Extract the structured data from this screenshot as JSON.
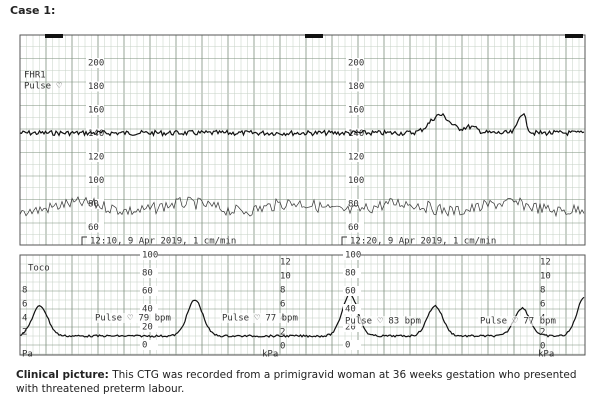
{
  "header": {
    "title": "Case 1:"
  },
  "strip": {
    "fhr_scale": [
      "200",
      "180",
      "160",
      "140",
      "120",
      "100",
      "80",
      "60"
    ],
    "fhr_legend": [
      "FHR1",
      "Pulse ♡"
    ],
    "timestamps": [
      "12:10, 9 Apr 2019, 1 cm/min",
      "12:20, 9 Apr 2019, 1 cm/min"
    ],
    "toco_label": "Toco",
    "toco_scale": [
      "100",
      "80",
      "60",
      "40",
      "20",
      "0"
    ],
    "kpa_scale": [
      "12",
      "10",
      "8",
      "6",
      "4",
      "2",
      "0"
    ],
    "left_scale": [
      "8",
      "6",
      "4",
      "2"
    ],
    "pa_label": "Pa",
    "kpa_label": "kPa",
    "pulse_notes": [
      "Pulse ♡ 79 bpm",
      "Pulse ♡ 77 bpm",
      "Pulse ♡ 83 bpm",
      "Pulse ♡ 77 bpm"
    ]
  },
  "caption": {
    "label": "Clinical picture:",
    "text": "This CTG was recorded from a primigravid woman at 36 weeks gestation who presented with threatened preterm labour."
  }
}
